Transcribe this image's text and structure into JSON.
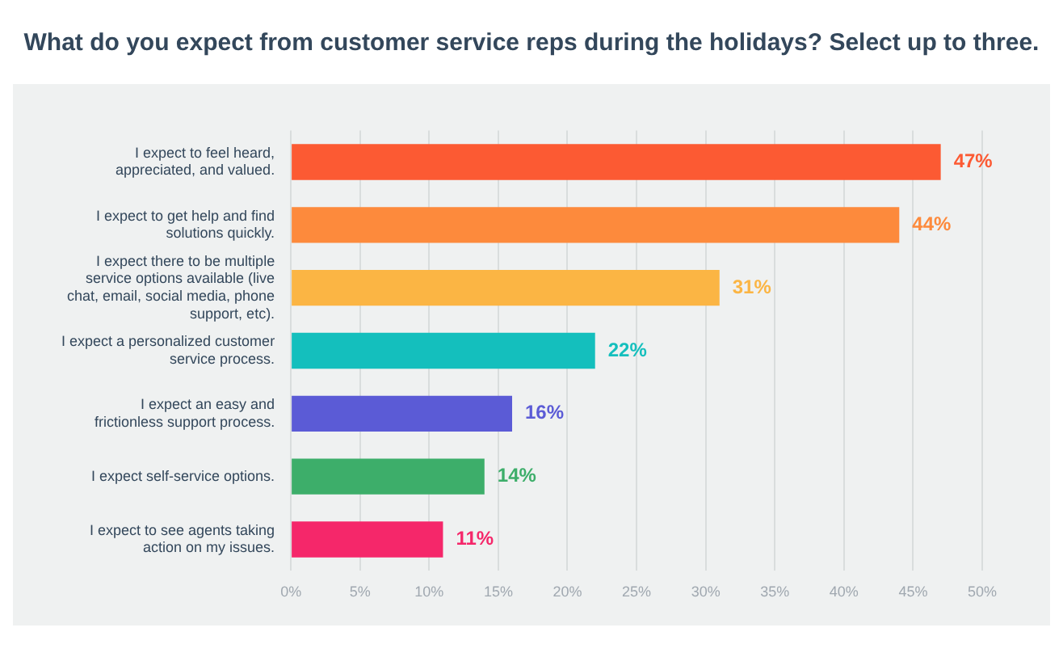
{
  "chart_data": {
    "type": "bar",
    "orientation": "horizontal",
    "title": "What do you expect from customer service reps during the holidays? Select up to three.",
    "categories": [
      "I expect to feel heard, appreciated, and valued.",
      "I expect to get help and find solutions quickly.",
      "I expect there to be multiple service options available (live chat, email, social media, phone support, etc).",
      "I expect a personalized customer service process.",
      "I expect an easy and frictionless support process.",
      "I expect self-service options.",
      "I expect to see agents taking action on my issues."
    ],
    "values": [
      47,
      44,
      31,
      22,
      16,
      14,
      11
    ],
    "colors": [
      "#fc5a33",
      "#fd8a3c",
      "#fbb544",
      "#14bfbd",
      "#5b5bd6",
      "#3dae6a",
      "#f5276a"
    ],
    "value_labels": [
      "47%",
      "44%",
      "31%",
      "22%",
      "16%",
      "14%",
      "11%"
    ],
    "xlim": [
      0,
      50
    ],
    "xticks": [
      {
        "value": 0,
        "label": "0%"
      },
      {
        "value": 5,
        "label": "5%"
      },
      {
        "value": 10,
        "label": "10%"
      },
      {
        "value": 15,
        "label": "15%"
      },
      {
        "value": 20,
        "label": "20%"
      },
      {
        "value": 25,
        "label": "25%"
      },
      {
        "value": 30,
        "label": "30%"
      },
      {
        "value": 35,
        "label": "35%"
      },
      {
        "value": 40,
        "label": "40%"
      },
      {
        "value": 45,
        "label": "45%"
      },
      {
        "value": 50,
        "label": "50%"
      }
    ],
    "grid": "x",
    "legend": false
  }
}
